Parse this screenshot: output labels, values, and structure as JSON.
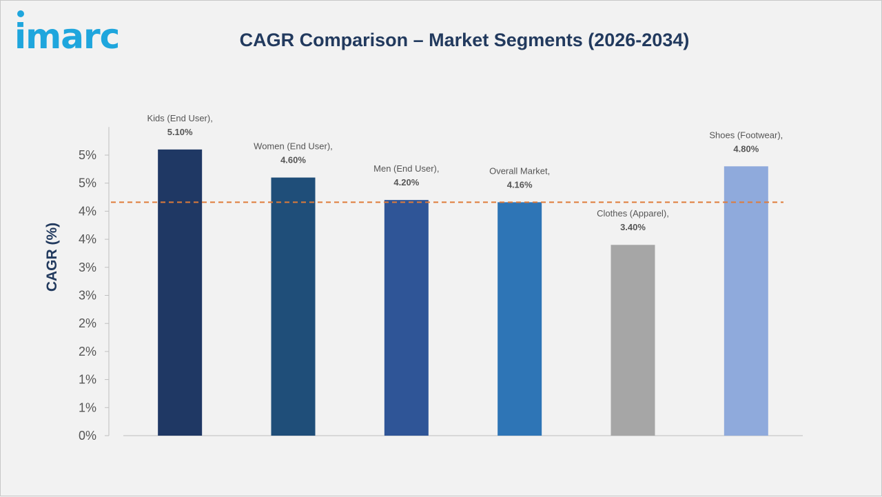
{
  "brand": {
    "logo_text": "imarc",
    "logo_color": "#1fa6dd"
  },
  "chart_data": {
    "type": "bar",
    "title": "CAGR Comparison – Market Segments (2026-2034)",
    "ylabel": "CAGR (%)",
    "xlabel": "",
    "ylim": [
      0,
      5.5
    ],
    "ytick_values": [
      0,
      0.5,
      1,
      1.5,
      2,
      2.5,
      3,
      3.5,
      4,
      4.5,
      5
    ],
    "ytick_labels": [
      "0%",
      "1%",
      "1%",
      "2%",
      "2%",
      "3%",
      "3%",
      "4%",
      "4%",
      "5%",
      "5%"
    ],
    "categories": [
      "Kids (End User)",
      "Women (End User)",
      "Men (End User)",
      "Overall Market",
      "Clothes (Apparel)",
      "Shoes (Footwear)"
    ],
    "values": [
      5.1,
      4.6,
      4.2,
      4.16,
      3.4,
      4.8
    ],
    "data_labels": [
      [
        "Kids (End User),",
        "5.10%"
      ],
      [
        "Women (End User),",
        "4.60%"
      ],
      [
        "Men (End User),",
        "4.20%"
      ],
      [
        "Overall Market,",
        "4.16%"
      ],
      [
        "Clothes (Apparel),",
        "3.40%"
      ],
      [
        "Shoes (Footwear),",
        "4.80%"
      ]
    ],
    "colors": [
      "#1f3864",
      "#1f4e79",
      "#2f5597",
      "#2e75b6",
      "#a6a6a6",
      "#8faadc"
    ],
    "reference_line": {
      "value": 4.16,
      "color": "#e07b39",
      "style": "dashed"
    },
    "grid": false,
    "legend": "none"
  }
}
